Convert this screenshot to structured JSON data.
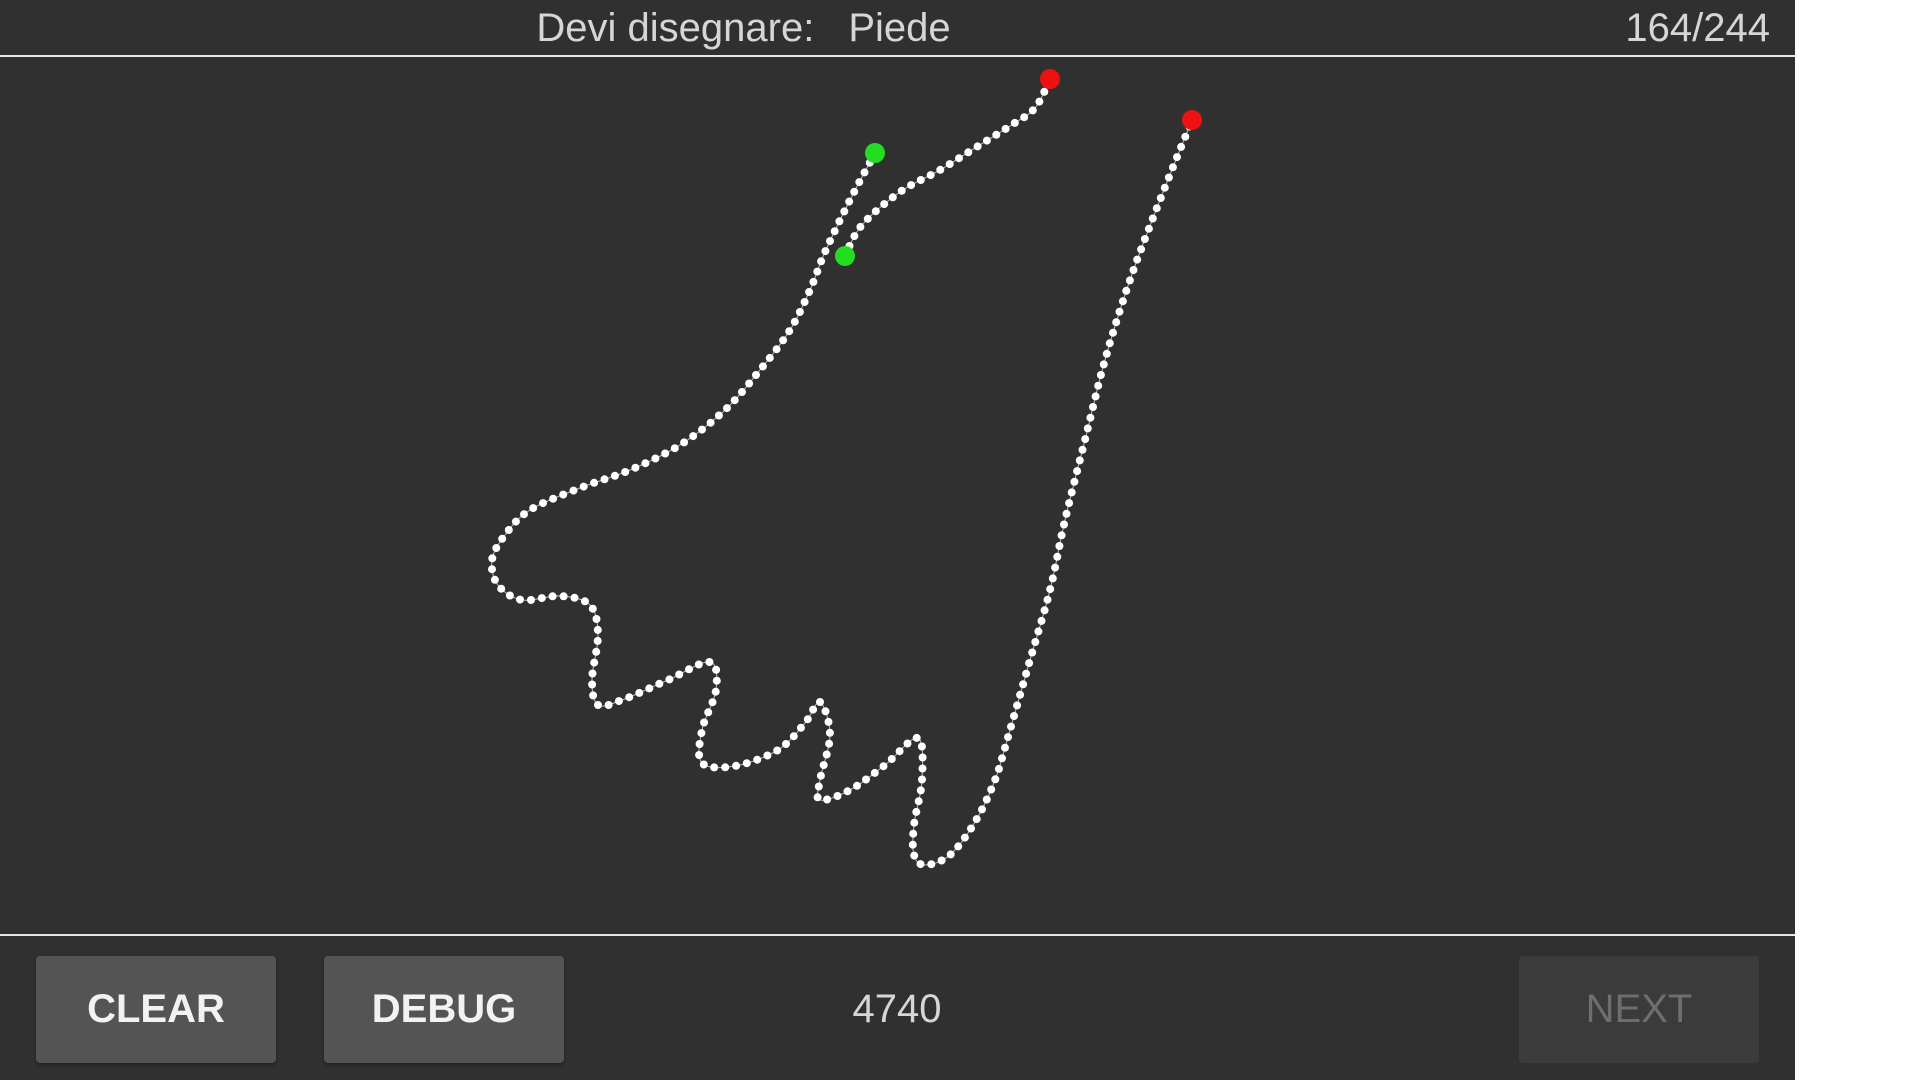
{
  "header": {
    "prompt_label": "Devi disegnare:",
    "prompt_word": "Piede",
    "counter": "164/244"
  },
  "footer": {
    "clear_label": "CLEAR",
    "debug_label": "DEBUG",
    "score": "4740",
    "next_label": "NEXT",
    "next_enabled": false
  },
  "drawing": {
    "stroke_color": "#ffffff",
    "start_color": "#22dd22",
    "end_color": "#ee1111"
  }
}
